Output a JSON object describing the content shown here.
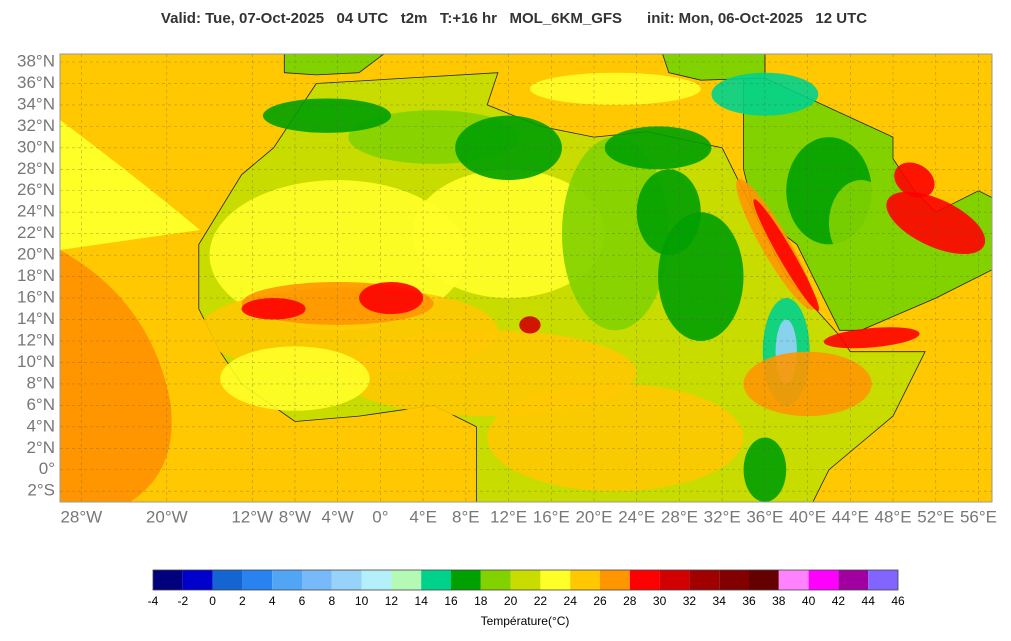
{
  "title": "Valid: Tue, 07-Oct-2025   04 UTC   t2m   T:+16 hr   MOL_6KM_GFS      init: Mon, 06-Oct-2025   12 UTC",
  "map": {
    "lat_ticks": [
      {
        "value": 38,
        "label": "38°N"
      },
      {
        "value": 36,
        "label": "36°N"
      },
      {
        "value": 34,
        "label": "34°N"
      },
      {
        "value": 32,
        "label": "32°N"
      },
      {
        "value": 30,
        "label": "30°N"
      },
      {
        "value": 28,
        "label": "28°N"
      },
      {
        "value": 26,
        "label": "26°N"
      },
      {
        "value": 24,
        "label": "24°N"
      },
      {
        "value": 22,
        "label": "22°N"
      },
      {
        "value": 20,
        "label": "20°N"
      },
      {
        "value": 18,
        "label": "18°N"
      },
      {
        "value": 16,
        "label": "16°N"
      },
      {
        "value": 14,
        "label": "14°N"
      },
      {
        "value": 12,
        "label": "12°N"
      },
      {
        "value": 10,
        "label": "10°N"
      },
      {
        "value": 8,
        "label": "8°N"
      },
      {
        "value": 6,
        "label": "6°N"
      },
      {
        "value": 4,
        "label": "4°N"
      },
      {
        "value": 2,
        "label": "2°N"
      },
      {
        "value": 0,
        "label": "0°"
      },
      {
        "value": -2,
        "label": "2°S"
      }
    ],
    "lon_ticks": [
      {
        "value": -28,
        "label": "28°W"
      },
      {
        "value": -20,
        "label": "20°W"
      },
      {
        "value": -12,
        "label": "12°W"
      },
      {
        "value": -8,
        "label": "8°W"
      },
      {
        "value": -4,
        "label": "4°W"
      },
      {
        "value": 0,
        "label": "0°"
      },
      {
        "value": 4,
        "label": "4°E"
      },
      {
        "value": 8,
        "label": "8°E"
      },
      {
        "value": 12,
        "label": "12°E"
      },
      {
        "value": 16,
        "label": "16°E"
      },
      {
        "value": 20,
        "label": "20°E"
      },
      {
        "value": 24,
        "label": "24°E"
      },
      {
        "value": 28,
        "label": "28°E"
      },
      {
        "value": 32,
        "label": "32°E"
      },
      {
        "value": 36,
        "label": "36°E"
      },
      {
        "value": 40,
        "label": "40°E"
      },
      {
        "value": 44,
        "label": "44°E"
      },
      {
        "value": 48,
        "label": "48°E"
      },
      {
        "value": 52,
        "label": "52°E"
      },
      {
        "value": 56,
        "label": "56°E"
      }
    ]
  },
  "colorbar": {
    "title": "Température(°C)",
    "ticks": [
      -4,
      -2,
      0,
      2,
      4,
      6,
      8,
      10,
      12,
      14,
      16,
      18,
      20,
      22,
      24,
      26,
      28,
      30,
      32,
      34,
      36,
      38,
      40,
      42,
      44,
      46
    ],
    "colors": [
      "#00007f",
      "#0000cd",
      "#1464d2",
      "#2882f0",
      "#50a5f5",
      "#78b9fa",
      "#96d2fa",
      "#b4f0fa",
      "#b4fab4",
      "#00d28c",
      "#00a000",
      "#82d200",
      "#c8dc00",
      "#ffff28",
      "#ffc800",
      "#ff9600",
      "#ff0000",
      "#d20000",
      "#a00000",
      "#820000",
      "#640000",
      "#ff82ff",
      "#ff00ff",
      "#a000a0",
      "#8264ff"
    ]
  }
}
